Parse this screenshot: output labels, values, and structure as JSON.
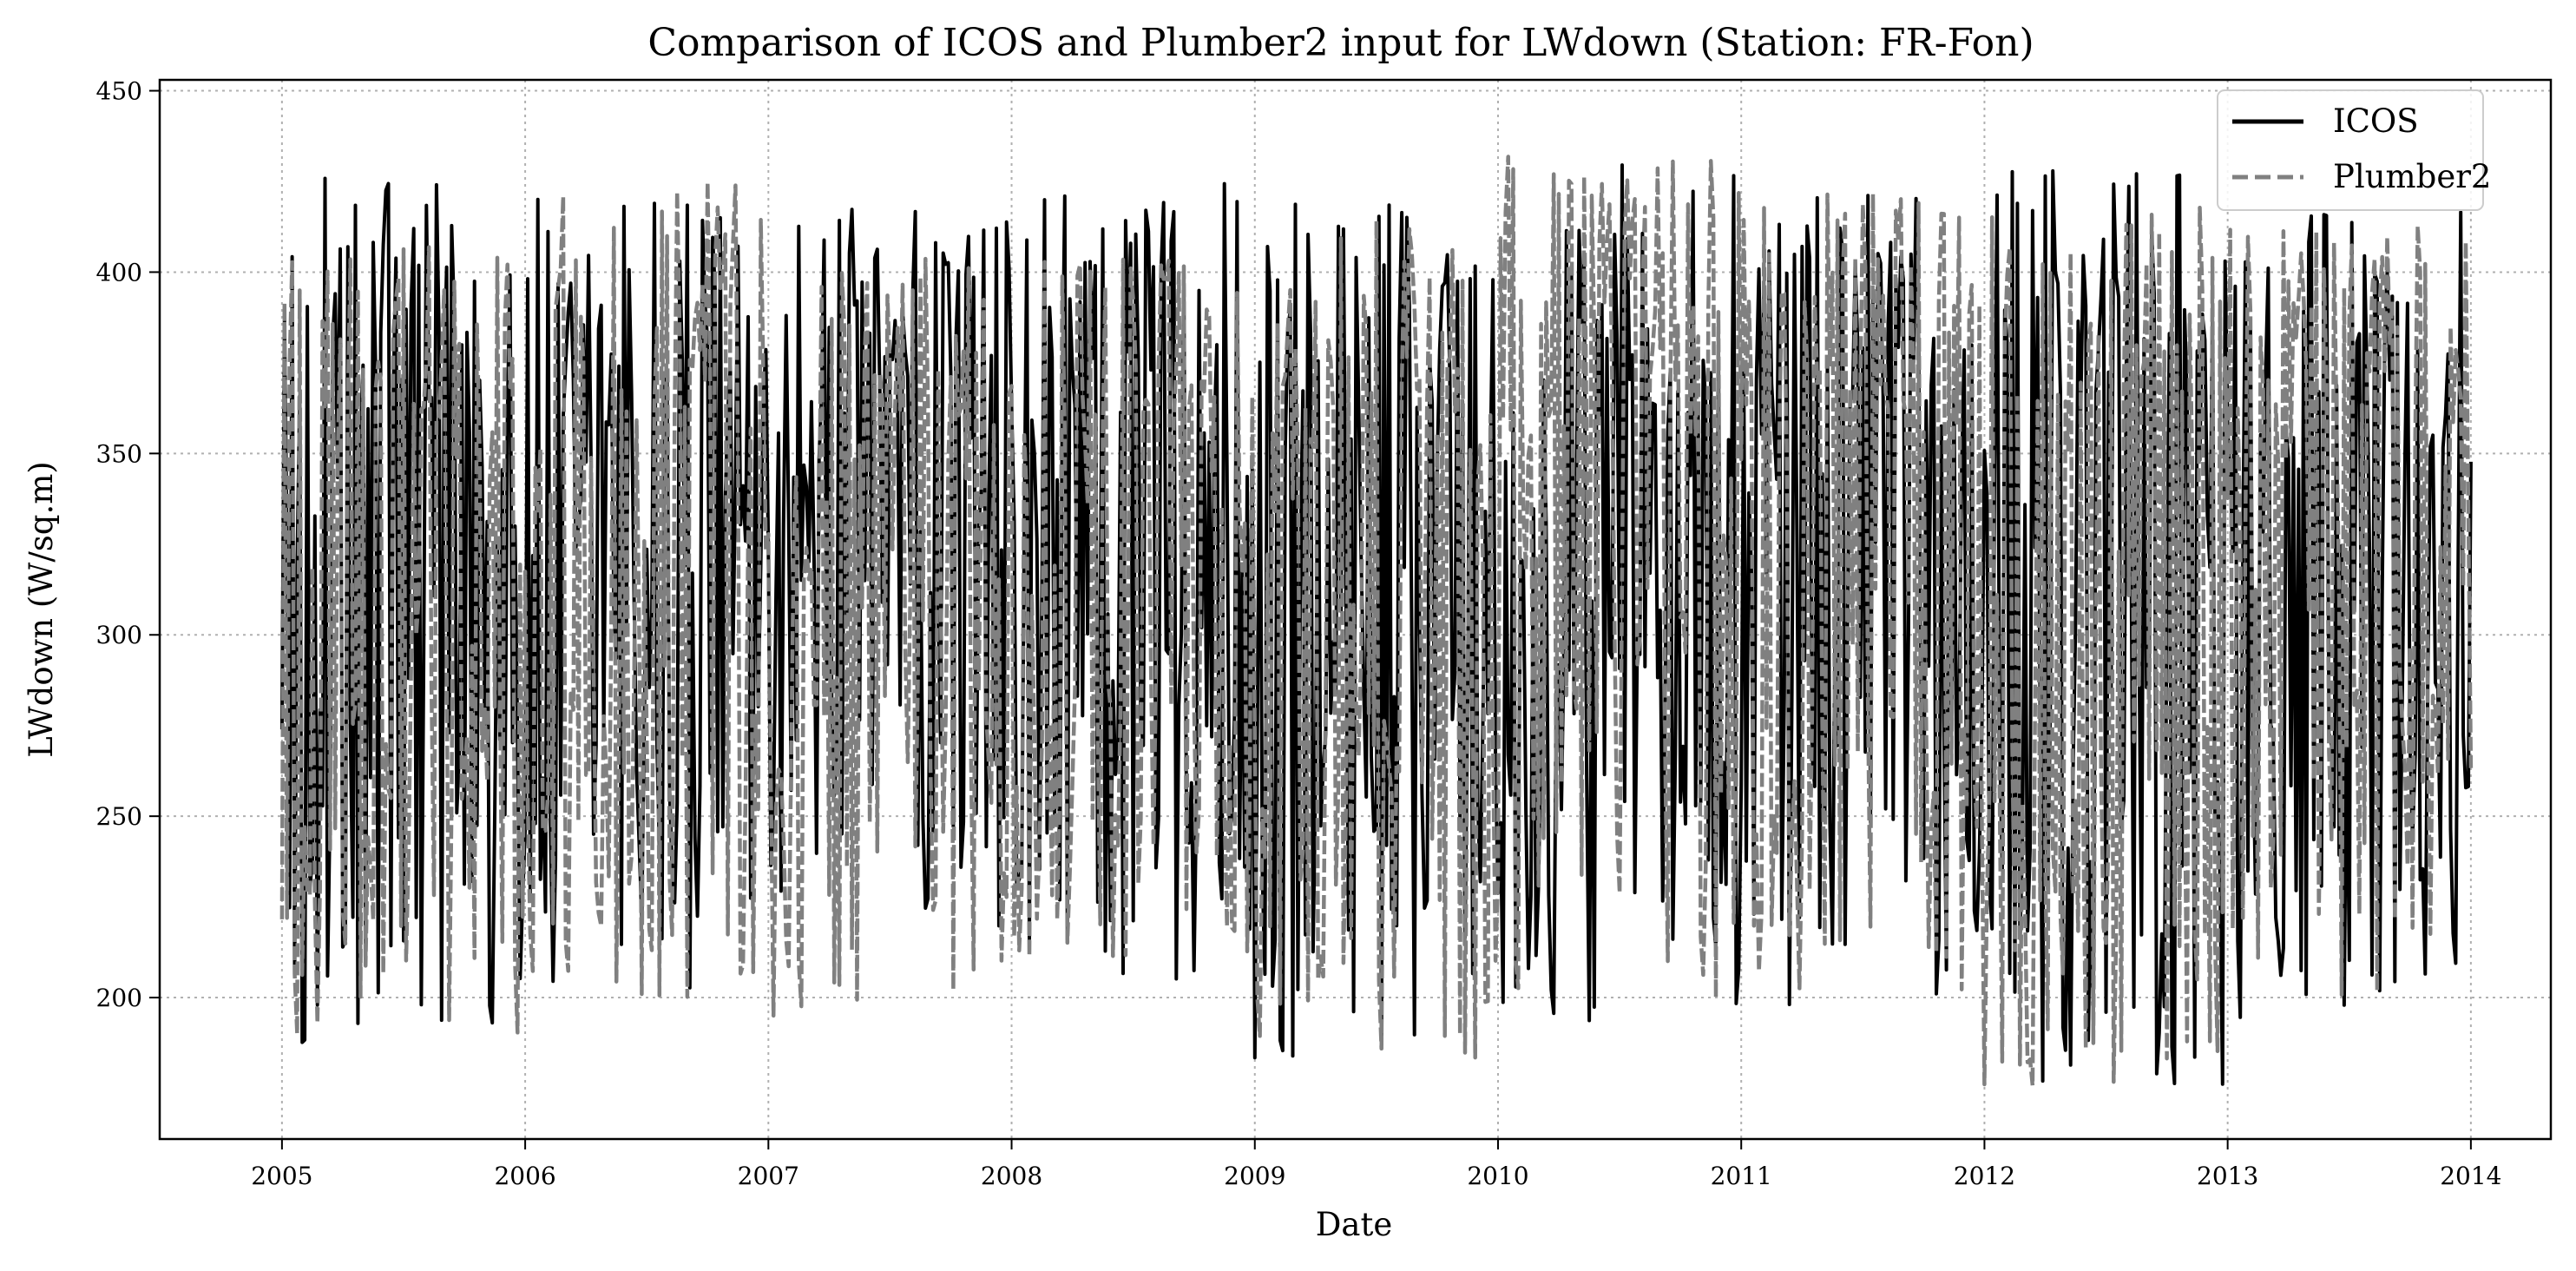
{
  "chart_data": {
    "type": "line",
    "title": "Comparison of ICOS and Plumber2 input for LWdown (Station: FR-Fon)",
    "xlabel": "Date",
    "ylabel": "LWdown (W/sq.m)",
    "xlim": [
      "2004-07-01",
      "2014-05-01"
    ],
    "ylim": [
      161,
      453
    ],
    "x_ticks": [
      "2005",
      "2006",
      "2007",
      "2008",
      "2009",
      "2010",
      "2011",
      "2012",
      "2013",
      "2014"
    ],
    "y_ticks": [
      200,
      250,
      300,
      350,
      400,
      450
    ],
    "grid": true,
    "legend": "top-right",
    "series": [
      {
        "name": "ICOS",
        "color": "#000000",
        "style": "solid",
        "x_start": "2005-01-01",
        "x_end": "2014-01-01",
        "points_per_year": 96,
        "seasonal_summary": {
          "annual_peak_max": [
            430,
            428,
            418,
            426,
            420,
            430,
            427,
            428,
            418
          ],
          "winter_trough_min": [
            184,
            202,
            219,
            205,
            183,
            192,
            198,
            176,
            194
          ],
          "winter_mean": 290,
          "summer_mean": 355
        }
      },
      {
        "name": "Plumber2",
        "color": "#808080",
        "style": "dashed",
        "x_start": "2005-01-01",
        "x_end": "2014-01-01",
        "points_per_year": 96,
        "seasonal_summary": {
          "annual_peak_max": [
            412,
            425,
            404,
            407,
            417,
            432,
            422,
            418,
            416
          ],
          "winter_trough_min": [
            190,
            200,
            194,
            208,
            182,
            193,
            201,
            175,
            196
          ],
          "winter_mean": 290,
          "summer_mean": 352
        }
      }
    ]
  }
}
